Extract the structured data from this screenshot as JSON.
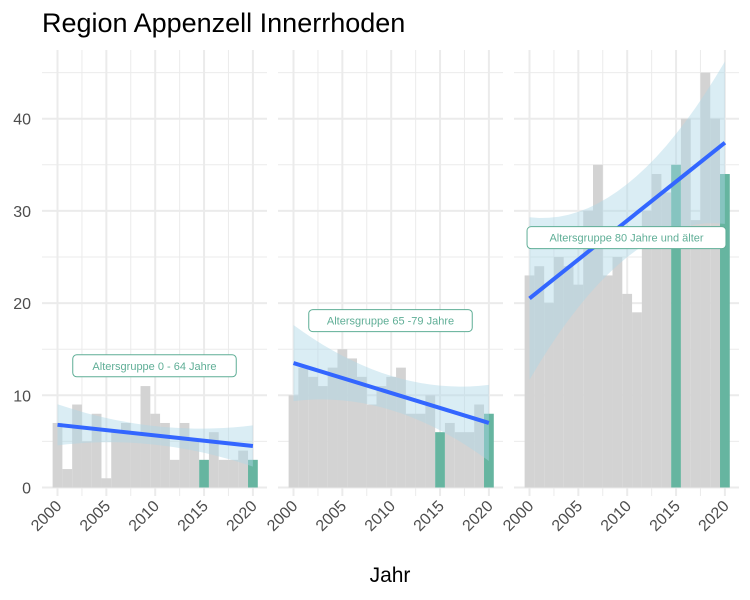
{
  "chart_data": {
    "type": "bar",
    "title": "Region Appenzell Innerrhoden",
    "xlabel": "Jahr",
    "ylabel": "",
    "ylim": [
      0,
      47
    ],
    "yticks": [
      0,
      10,
      20,
      30,
      40
    ],
    "xticks": [
      2000,
      2005,
      2010,
      2015,
      2020
    ],
    "x": [
      2000,
      2001,
      2002,
      2003,
      2004,
      2005,
      2006,
      2007,
      2008,
      2009,
      2010,
      2011,
      2012,
      2013,
      2014,
      2015,
      2016,
      2017,
      2018,
      2019,
      2020
    ],
    "grid": true,
    "highlight_years": [
      2015,
      2020
    ],
    "colors": {
      "bar": "#d3d3d3",
      "highlight": "#66b5a0",
      "trend": "#3366ff",
      "band": "#add8e6",
      "annotation": "#5fae96",
      "grid": "#ebebeb"
    },
    "panels": [
      {
        "annotation": "Altersgruppe 0 - 64 Jahre",
        "values": [
          7,
          2,
          9,
          5,
          8,
          1,
          6,
          7,
          6,
          11,
          8,
          7,
          3,
          7,
          5,
          3,
          6,
          3,
          3,
          4,
          3
        ],
        "trend_start": 6.8,
        "trend_end": 4.5
      },
      {
        "annotation": "Altersgruppe 65 -79 Jahre",
        "values": [
          10,
          13,
          12,
          11,
          13,
          15,
          14,
          12,
          9,
          11,
          12,
          13,
          8,
          8,
          10,
          6,
          7,
          6,
          6,
          9,
          8
        ],
        "trend_start": 13.5,
        "trend_end": 7.0
      },
      {
        "annotation": "Altersgruppe 80 Jahre und älter",
        "values": [
          23,
          24,
          20,
          25,
          24,
          22,
          30,
          35,
          23,
          25,
          21,
          19,
          30,
          34,
          32,
          35,
          40,
          29,
          45,
          40,
          34
        ],
        "trend_start": 20.5,
        "trend_end": 37.4
      }
    ]
  }
}
